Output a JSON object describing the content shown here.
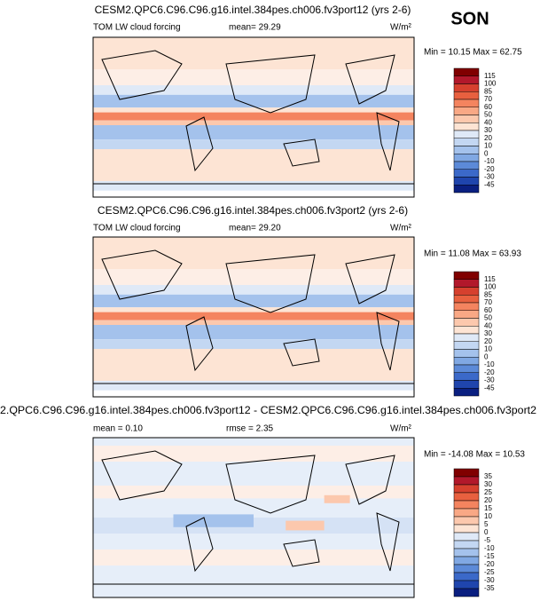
{
  "title": "SON",
  "panels": [
    {
      "title": "CESM2.QPC6.C96.C96.g16.intel.384pes.ch006.fv3port12 (yrs 2-6)",
      "labels": [
        "TOM LW cloud forcing",
        "mean=  29.29"
      ],
      "units": "W/m²",
      "range": "Min = 10.15 Max = 62.75",
      "colorbar": [
        "115",
        "100",
        "85",
        "70",
        "60",
        "50",
        "40",
        "30",
        "20",
        "10",
        "0",
        "-10",
        "-20",
        "-30",
        "-45"
      ]
    },
    {
      "title": "CESM2.QPC6.C96.C96.g16.intel.384pes.ch006.fv3port2 (yrs 2-6)",
      "labels": [
        "TOM LW cloud forcing",
        "mean=  29.20"
      ],
      "units": "W/m²",
      "range": "Min = 11.08 Max = 63.93",
      "colorbar": [
        "115",
        "100",
        "85",
        "70",
        "60",
        "50",
        "40",
        "30",
        "20",
        "10",
        "0",
        "-10",
        "-20",
        "-30",
        "-45"
      ]
    },
    {
      "title": "2.QPC6.C96.C96.g16.intel.384pes.ch006.fv3port12 - CESM2.QPC6.C96.C96.g16.intel.384pes.ch006.fv3port2",
      "labels": [
        "mean =   0.10",
        "rmse =   2.35"
      ],
      "units": "W/m²",
      "range": "Min = -14.08 Max = 10.53",
      "colorbar": [
        "35",
        "30",
        "25",
        "20",
        "15",
        "10",
        "5",
        "0",
        "-5",
        "-10",
        "-15",
        "-20",
        "-25",
        "-30",
        "-35"
      ]
    }
  ]
}
